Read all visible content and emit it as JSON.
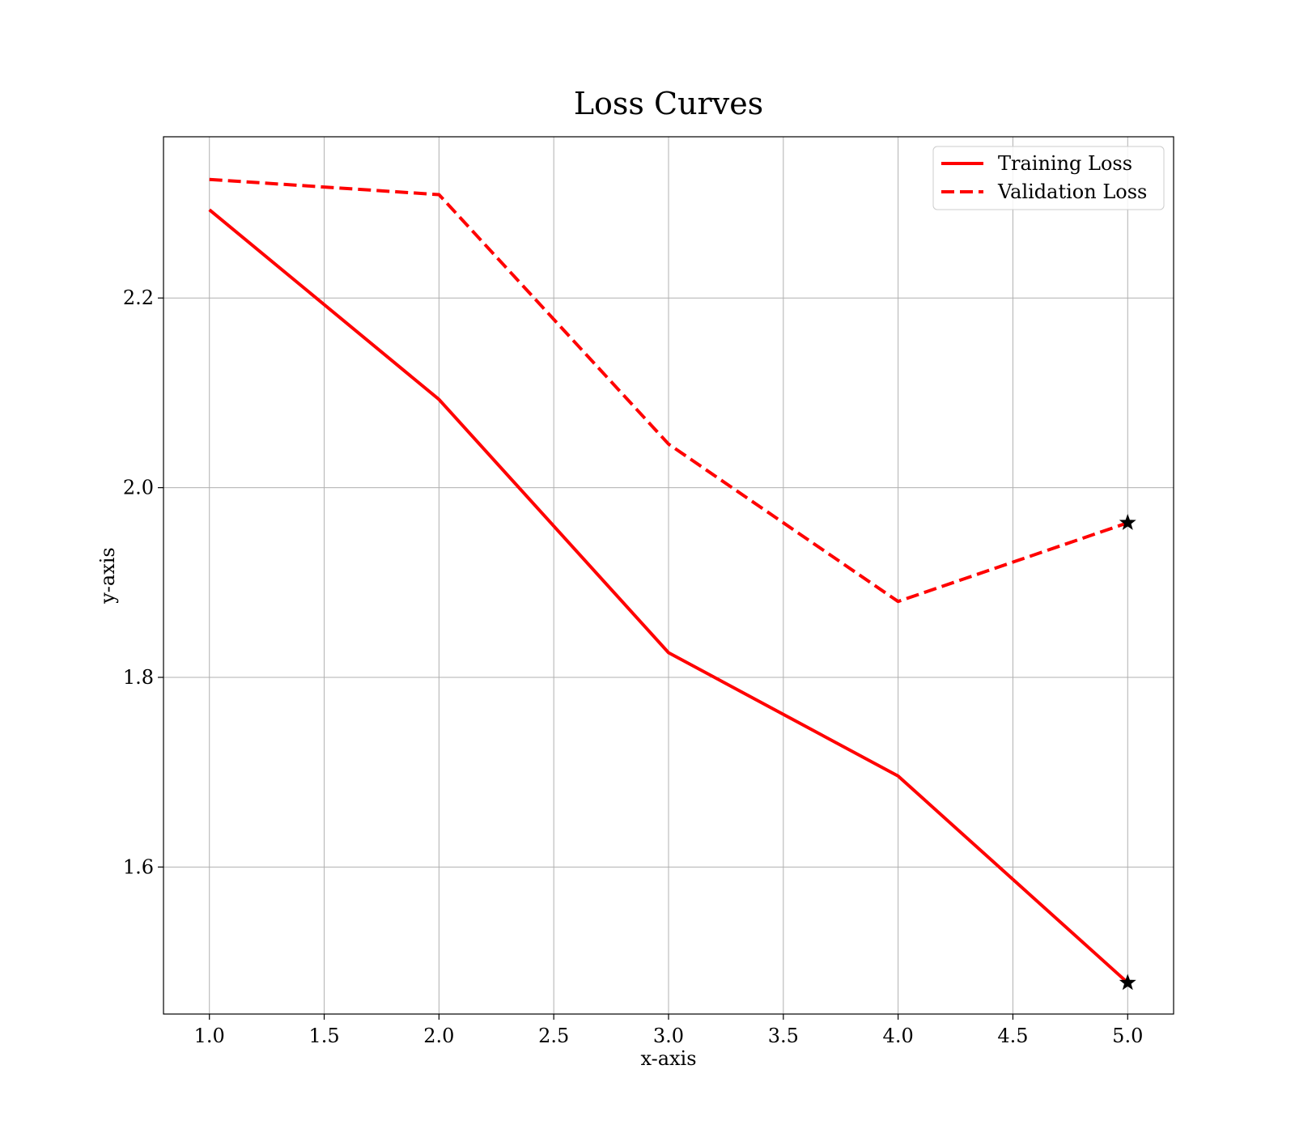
{
  "chart_data": {
    "type": "line",
    "title": "Loss Curves",
    "xlabel": "x-axis",
    "ylabel": "y-axis",
    "xlim": [
      0.8,
      5.2
    ],
    "ylim": [
      1.445,
      2.37
    ],
    "xticks": [
      1.0,
      1.5,
      2.0,
      2.5,
      3.0,
      3.5,
      4.0,
      4.5,
      5.0
    ],
    "xtick_labels": [
      "1.0",
      "1.5",
      "2.0",
      "2.5",
      "3.0",
      "3.5",
      "4.0",
      "4.5",
      "5.0"
    ],
    "yticks": [
      1.6,
      1.8,
      2.0,
      2.2
    ],
    "ytick_labels": [
      "1.6",
      "1.8",
      "2.0",
      "2.2"
    ],
    "grid": true,
    "legend_position": "top-right",
    "series": [
      {
        "name": "Training Loss",
        "style": "solid",
        "color": "#ff0000",
        "x": [
          1,
          2,
          3,
          4,
          5
        ],
        "y": [
          2.293,
          2.093,
          1.826,
          1.696,
          1.478
        ]
      },
      {
        "name": "Validation Loss",
        "style": "dashed",
        "color": "#ff0000",
        "x": [
          1,
          2,
          3,
          4,
          5
        ],
        "y": [
          2.325,
          2.309,
          2.046,
          1.88,
          1.963
        ]
      }
    ],
    "markers": {
      "shape": "star",
      "color": "#000000",
      "points": [
        {
          "x": 5,
          "y": 1.478
        },
        {
          "x": 5,
          "y": 1.963
        }
      ]
    }
  }
}
